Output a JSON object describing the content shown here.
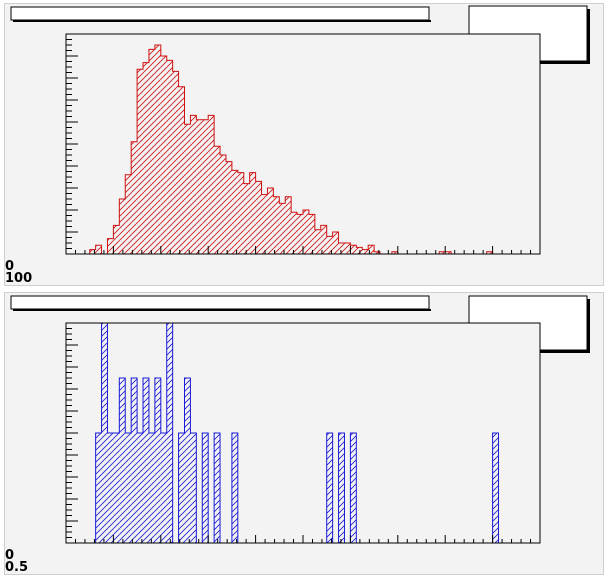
{
  "chart_data": [
    {
      "type": "bar",
      "style": "histogram",
      "color": "#d01010",
      "fill": "hatched-diagonal",
      "title": "",
      "xlabel": "",
      "ylabel": "",
      "y_tick_labels": [
        "0",
        "100"
      ],
      "ylim": [
        0,
        100
      ],
      "bins": 80,
      "values": [
        0,
        0,
        0,
        0,
        2,
        4,
        0,
        7,
        13,
        25,
        36,
        51,
        84,
        87,
        93,
        95,
        90,
        88,
        83,
        76,
        59,
        63,
        61,
        61,
        63,
        49,
        45,
        42,
        38,
        37,
        32,
        37,
        33,
        27,
        30,
        26,
        23,
        26,
        19,
        18,
        20,
        18,
        11,
        13,
        8,
        10,
        5,
        5,
        4,
        3,
        2,
        4,
        1,
        0,
        0,
        1,
        0,
        0,
        0,
        0,
        0,
        0,
        0,
        1,
        1,
        0,
        0,
        0,
        0,
        0,
        0,
        1,
        0,
        0,
        0,
        0,
        0,
        0,
        0,
        0
      ],
      "legend": "top-right",
      "grid": false
    },
    {
      "type": "bar",
      "style": "histogram",
      "color": "#1a1ad8",
      "fill": "hatched-diagonal",
      "title": "",
      "xlabel": "",
      "ylabel": "",
      "y_tick_labels": [
        "0",
        "0.5"
      ],
      "ylim": [
        0,
        4
      ],
      "bins": 80,
      "values": [
        0,
        0,
        0,
        0,
        0,
        2,
        4,
        2,
        2,
        3,
        2,
        3,
        2,
        3,
        2,
        3,
        2,
        4,
        0,
        2,
        3,
        2,
        0,
        2,
        0,
        2,
        0,
        0,
        2,
        0,
        0,
        0,
        0,
        0,
        0,
        0,
        0,
        0,
        0,
        0,
        0,
        0,
        0,
        0,
        2,
        0,
        2,
        0,
        2,
        0,
        0,
        0,
        0,
        0,
        0,
        0,
        0,
        0,
        0,
        0,
        0,
        0,
        0,
        0,
        0,
        0,
        0,
        0,
        0,
        0,
        0,
        0,
        2,
        0,
        0,
        0,
        0,
        0,
        0,
        0
      ],
      "legend": "top-right",
      "grid": false
    }
  ]
}
